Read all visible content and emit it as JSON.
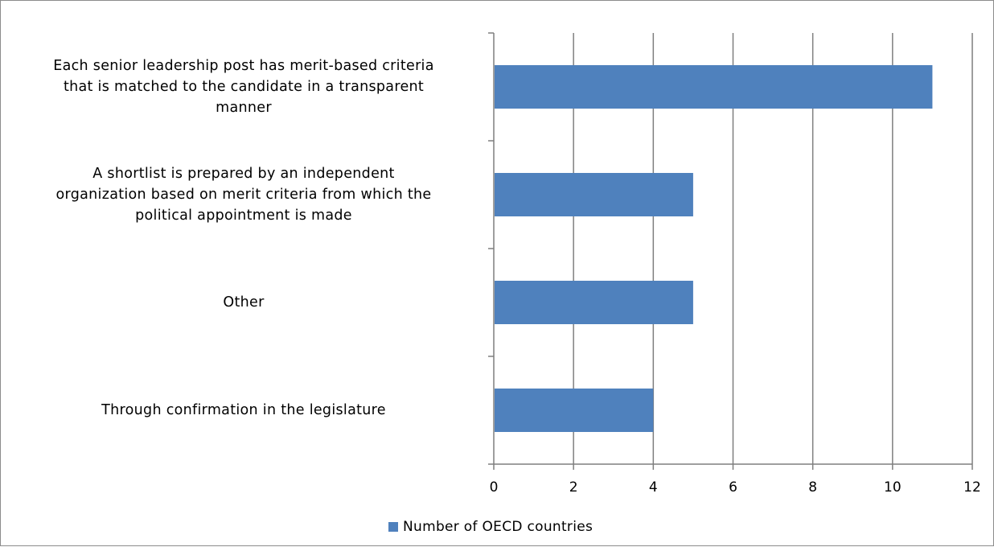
{
  "chart_data": {
    "type": "bar",
    "orientation": "horizontal",
    "categories": [
      "Each senior leadership post has merit-based criteria that is matched to the candidate in a transparent manner",
      "A shortlist is prepared by an independent organization based on merit criteria from which the political appointment is made",
      "Other",
      "Through confirmation in the legislature"
    ],
    "category_lines": [
      [
        "Each senior leadership post has merit-based criteria",
        "that is matched to the candidate in a transparent",
        "manner"
      ],
      [
        "A shortlist is prepared by an independent",
        "organization based on merit criteria from which the",
        "political appointment is made"
      ],
      [
        "Other"
      ],
      [
        "Through confirmation in the legislature"
      ]
    ],
    "series": [
      {
        "name": "Number of OECD countries",
        "values": [
          11,
          5,
          5,
          4
        ],
        "color": "#4f81bd"
      }
    ],
    "xlim": [
      0,
      12
    ],
    "x_ticks": [
      "0",
      "2",
      "4",
      "6",
      "8",
      "10",
      "12"
    ],
    "grid": "vertical",
    "legend": "bottom",
    "title": "",
    "xlabel": "",
    "ylabel": ""
  },
  "legend": {
    "label": "Number of OECD countries"
  },
  "colors": {
    "bar": "#4f81bd",
    "grid": "#7f7f7f",
    "axis": "#7f7f7f"
  }
}
